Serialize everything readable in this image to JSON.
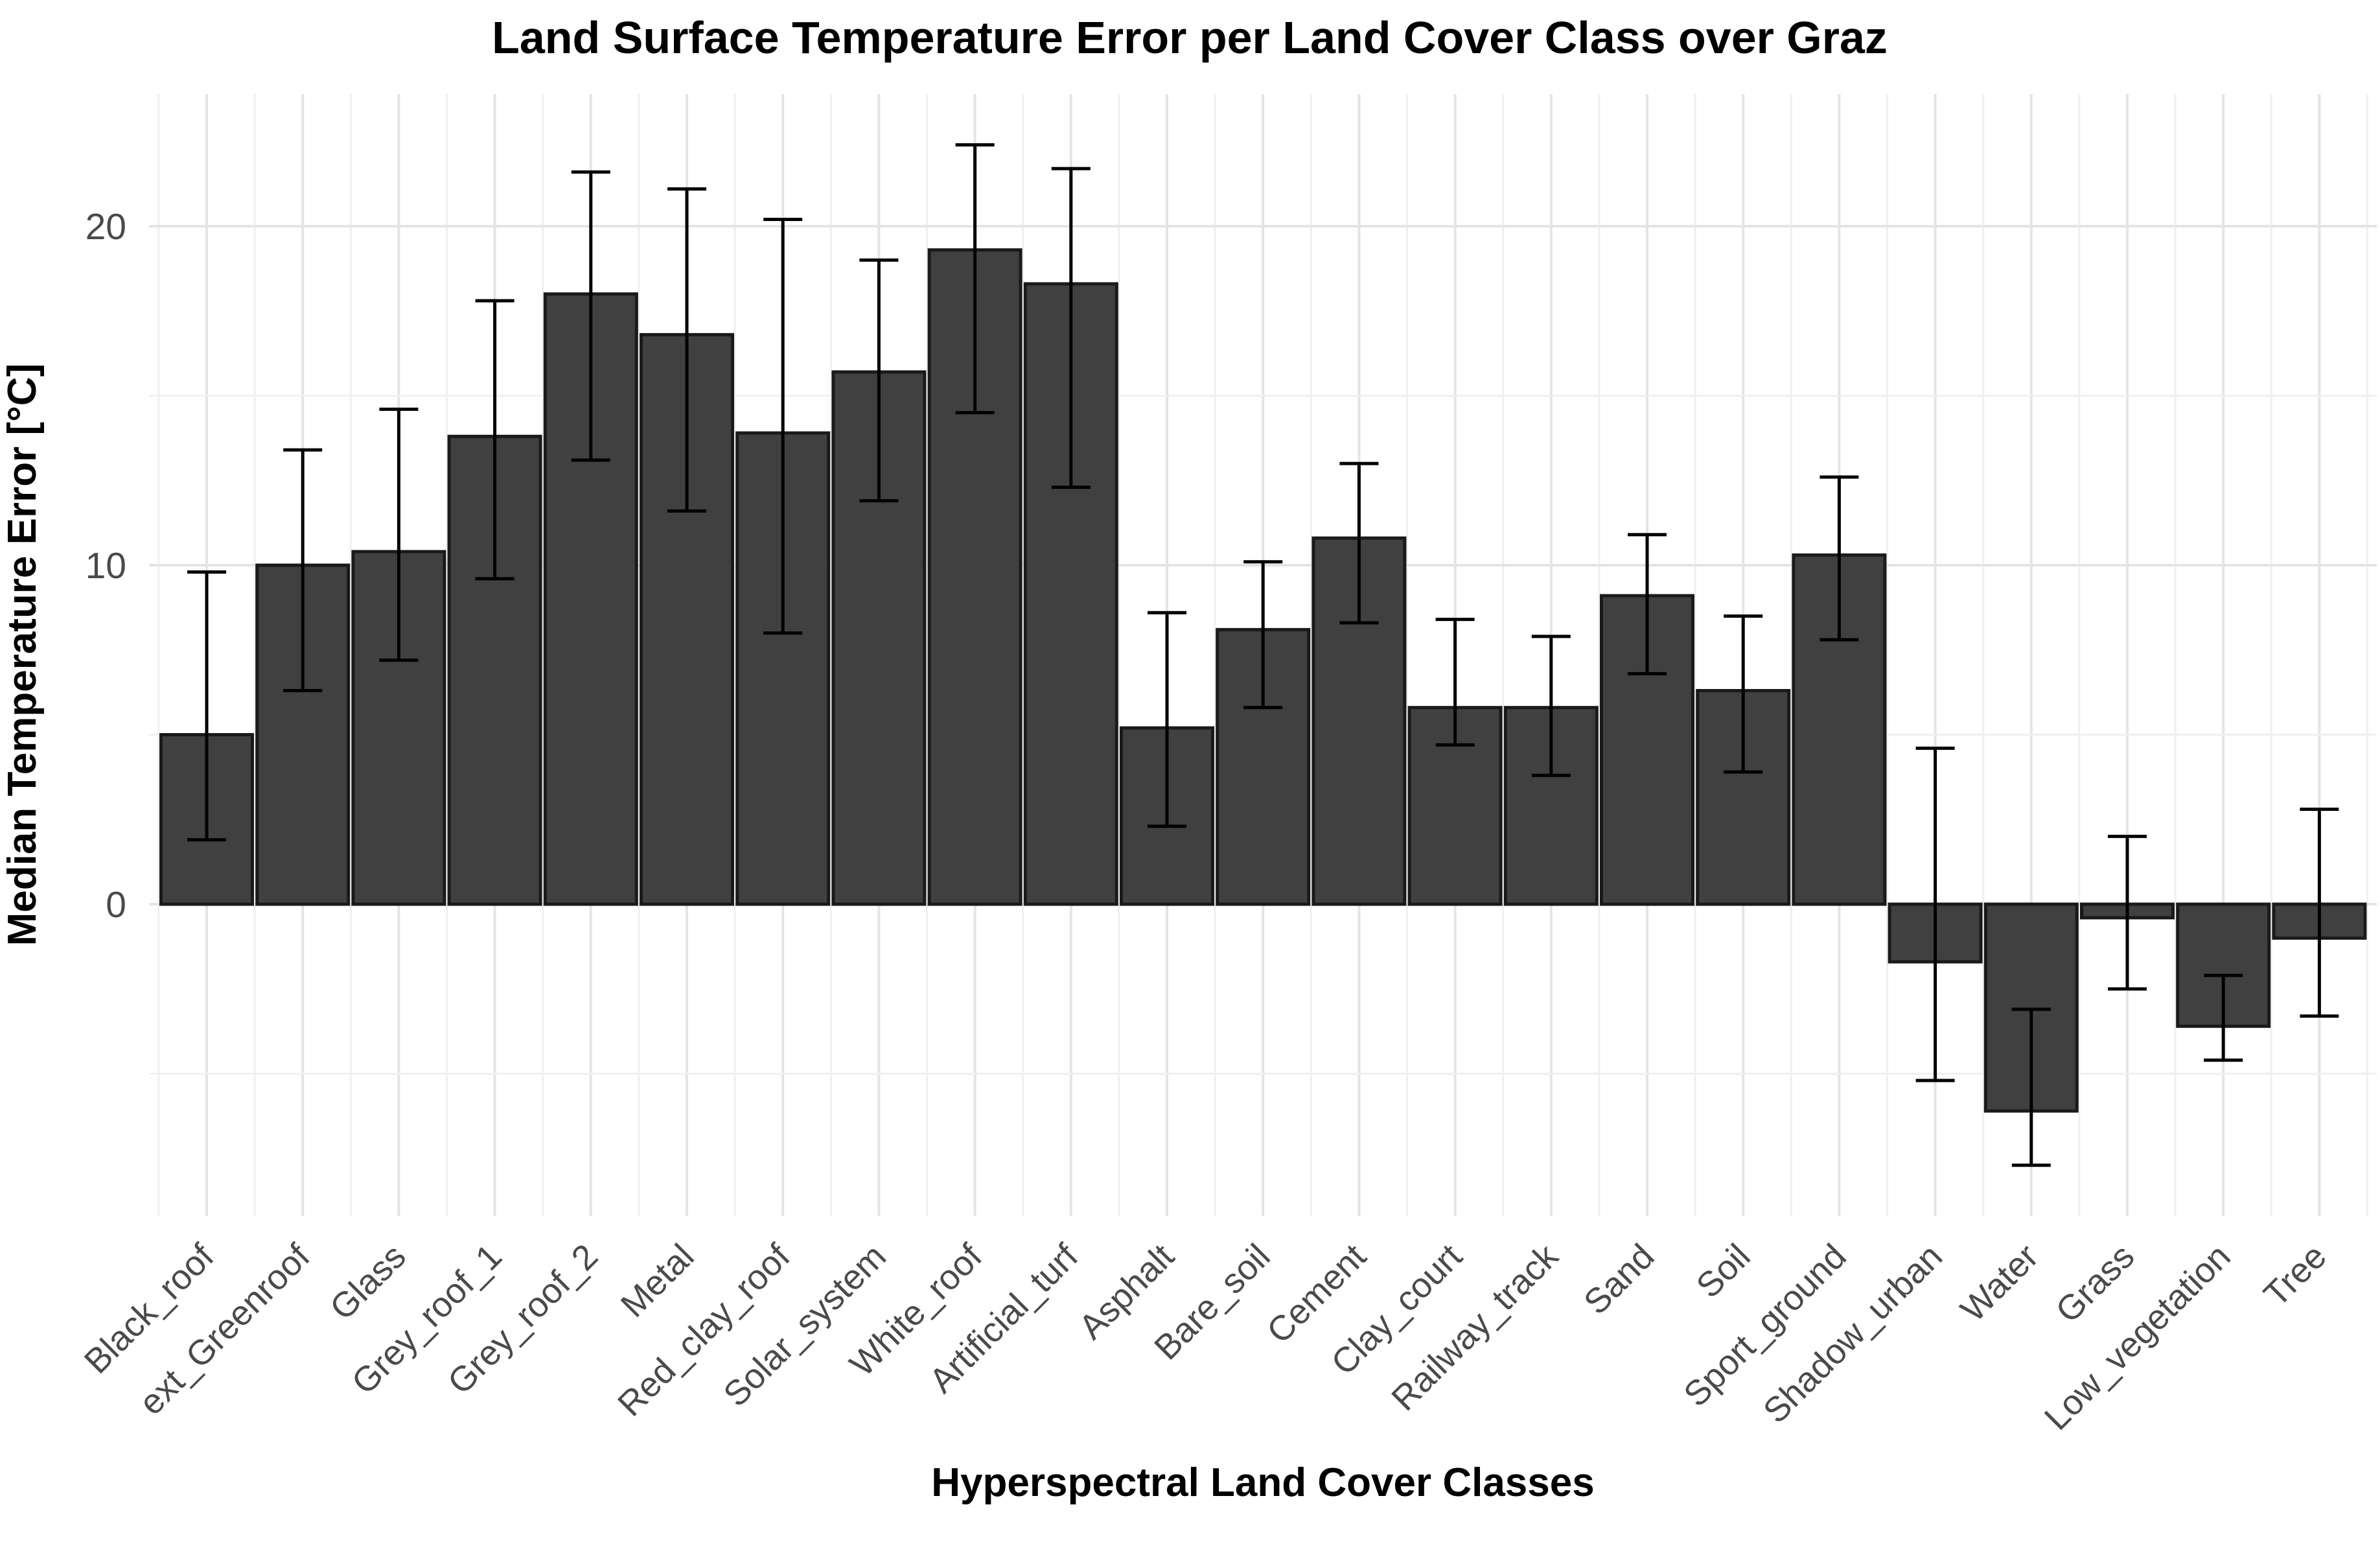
{
  "chart_data": {
    "type": "bar",
    "title": "Land Surface Temperature Error per Land Cover Class over Graz",
    "xlabel": "Hyperspectral Land Cover Classes",
    "ylabel": "Median Temperature Error [°C]",
    "categories": [
      "Black_roof",
      "ext_Greenroof",
      "Glass",
      "Grey_roof_1",
      "Grey_roof_2",
      "Metal",
      "Red_clay_roof",
      "Solar_system",
      "White_roof",
      "Artificial_turf",
      "Asphalt",
      "Bare_soil",
      "Cement",
      "Clay_court",
      "Railway_track",
      "Sand",
      "Soil",
      "Sport_ground",
      "Shadow_urban",
      "Water",
      "Grass",
      "Low_vegetation",
      "Tree"
    ],
    "values": [
      5.0,
      10.0,
      10.4,
      13.8,
      18.0,
      16.8,
      13.9,
      15.7,
      19.3,
      18.3,
      5.2,
      8.1,
      10.8,
      5.8,
      5.8,
      9.1,
      6.3,
      10.3,
      -1.7,
      -6.1,
      -0.4,
      -3.6,
      -1.0
    ],
    "error_low": [
      1.9,
      6.3,
      7.2,
      9.6,
      13.1,
      11.6,
      8.0,
      11.9,
      14.5,
      12.3,
      2.3,
      5.8,
      8.3,
      4.7,
      3.8,
      6.8,
      3.9,
      7.8,
      -5.2,
      -7.7,
      -2.5,
      -4.6,
      -3.3
    ],
    "error_high": [
      9.8,
      13.4,
      14.6,
      17.8,
      21.6,
      21.1,
      20.2,
      19.0,
      22.4,
      21.7,
      8.6,
      10.1,
      13.0,
      8.4,
      7.9,
      10.9,
      8.5,
      12.6,
      4.6,
      -3.1,
      2.0,
      -2.1,
      2.8
    ],
    "y_major_ticks": [
      0,
      10,
      20
    ],
    "y_tick_labels": [
      "0",
      "10",
      "20"
    ],
    "y_minor_ticks": [
      -5,
      5,
      15
    ],
    "ylim": [
      -9.3,
      23.9
    ],
    "grid": "on",
    "legend": "none",
    "error_bars": "on",
    "colors": {
      "bar_fill": "#404040",
      "bar_stroke": "#1a1a1a",
      "error_bar": "#000000",
      "grid_major": "#e4e4e4",
      "grid_minor": "#f0f0f0",
      "tick_text": "#4a4a4a",
      "title_text": "#000000",
      "background": "#ffffff"
    }
  }
}
